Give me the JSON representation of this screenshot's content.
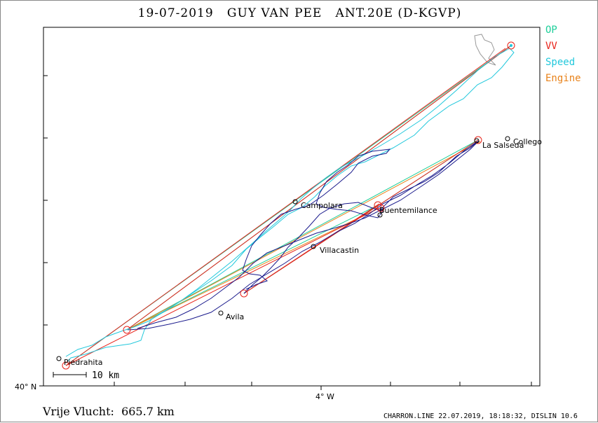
{
  "title": "19-07-2019   GUY VAN PEE   ANT.20E (D-KGVP)",
  "legend": {
    "items": [
      {
        "label": "OP",
        "color": "#1fcf9a"
      },
      {
        "label": "VV",
        "color": "#e8231a"
      },
      {
        "label": "Speed",
        "color": "#22c8dc"
      },
      {
        "label": "Engine",
        "color": "#e8821a"
      }
    ]
  },
  "axes": {
    "lat_label": "40° N",
    "lon_label": "4° W"
  },
  "scale_bar": {
    "label": "10 km"
  },
  "places": [
    {
      "name": "Piedrahita"
    },
    {
      "name": "Avila"
    },
    {
      "name": "Villacastin"
    },
    {
      "name": "Campolara"
    },
    {
      "name": "Buentemilance"
    },
    {
      "name": "La Salseda"
    },
    {
      "name": "Collego"
    }
  ],
  "colors": {
    "track": "#1a1a8c",
    "turnpoint": "#e8231a",
    "frame": "#000000"
  },
  "footer": {
    "distance": "Vrije Vlucht:  665.7 km",
    "credits": "CHARRON.LINE 22.07.2019, 18:18:32, DISLIN 10.6"
  }
}
